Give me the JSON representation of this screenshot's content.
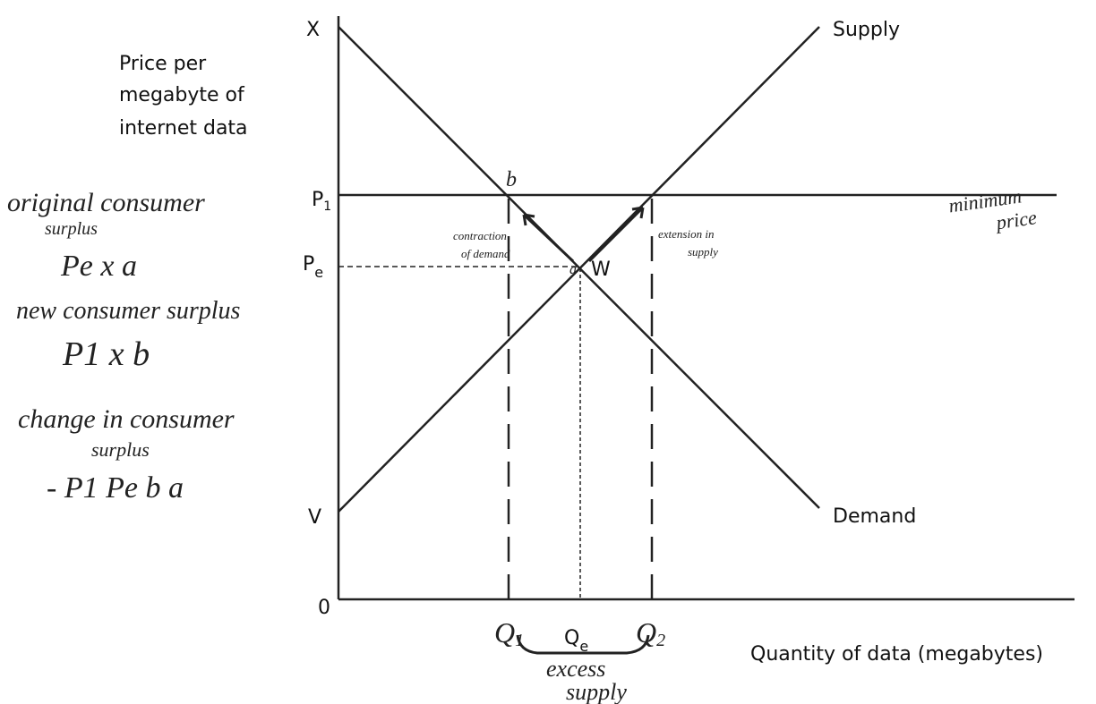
{
  "diagram": {
    "y_axis_label": [
      "Price per",
      "megabyte of",
      "internet data"
    ],
    "x_axis_label": "Quantity of data (megabytes)",
    "origin": "0",
    "price_labels": {
      "x": "X",
      "p1": "P",
      "p1_sub": "1",
      "pe": "P",
      "pe_sub": "e",
      "v": "V"
    },
    "quantity_labels": {
      "q1": "Q",
      "q1_sub": "1",
      "qe": "Q",
      "qe_sub": "e",
      "q2": "Q",
      "q2_sub": "2"
    },
    "curves": {
      "supply": "Supply",
      "demand": "Demand"
    },
    "points": {
      "w": "W",
      "b": "b",
      "a": "a"
    },
    "annotations": {
      "minimum_price": [
        "minimum",
        "price"
      ],
      "contraction": [
        "contraction",
        "of demand"
      ],
      "extension": [
        "extension in",
        "supply"
      ],
      "excess_supply": [
        "excess",
        "supply"
      ]
    },
    "notes": [
      "original consumer",
      "surplus",
      "Pe x a",
      "new consumer surplus",
      "P1 x b",
      "change in consumer",
      "surplus",
      "- P1 Pe b a"
    ]
  }
}
